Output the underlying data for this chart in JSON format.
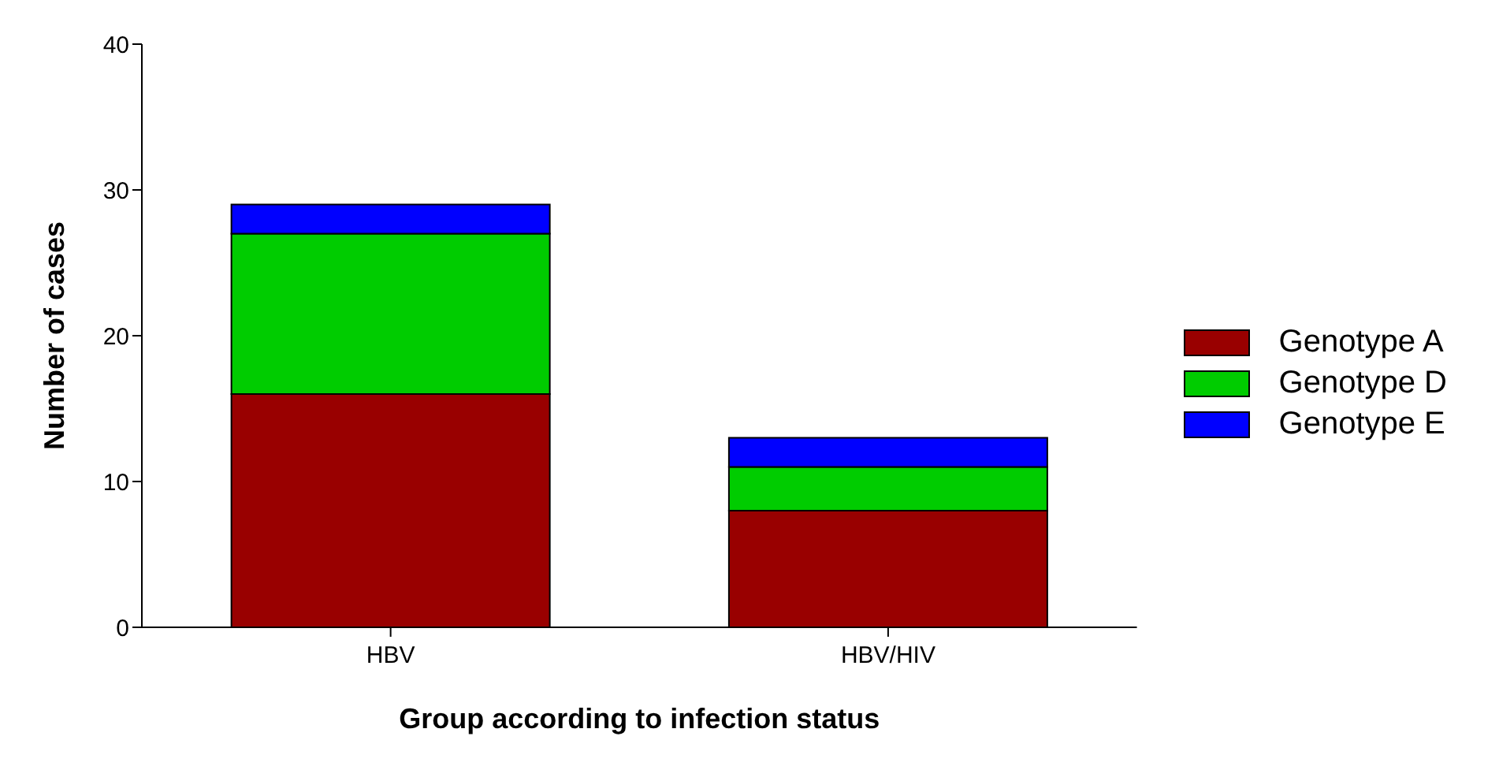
{
  "chart_data": {
    "type": "bar",
    "stacked": true,
    "xlabel": "Group according to infection status",
    "ylabel": "Number of cases",
    "categories": [
      "HBV",
      "HBV/HIV"
    ],
    "series": [
      {
        "name": "Genotype A",
        "color": "#990000",
        "values": [
          16,
          8
        ]
      },
      {
        "name": "Genotype D",
        "color": "#00cc00",
        "values": [
          11,
          3
        ]
      },
      {
        "name": "Genotype E",
        "color": "#0000ff",
        "values": [
          2,
          2
        ]
      }
    ],
    "ylim": [
      0,
      40
    ],
    "yticks": [
      0,
      10,
      20,
      30,
      40
    ],
    "grid": false,
    "legend": "right"
  }
}
